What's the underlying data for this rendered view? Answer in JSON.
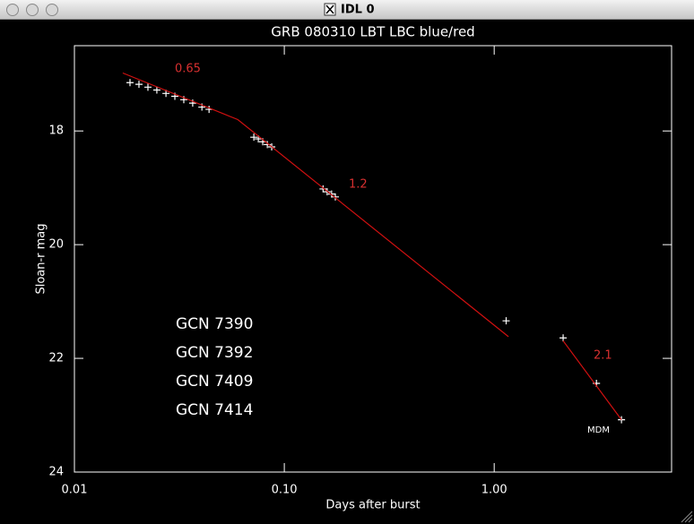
{
  "window": {
    "title": "IDL 0"
  },
  "chart_data": {
    "type": "scatter",
    "title": "GRB 080310 LBT LBC blue/red",
    "x_label": "Days after burst",
    "y_label": "Sloan-r mag",
    "xscale": "log",
    "xlim": [
      0.01,
      7
    ],
    "ylim": [
      24,
      16.5
    ],
    "xticks": [
      0.01,
      {
        "value": 0.1,
        "label": "0.10"
      },
      {
        "value": 1,
        "label": "1.00"
      }
    ],
    "yticks": [
      18,
      20,
      22,
      24
    ],
    "grid": false,
    "series": [
      {
        "type": "scatter",
        "color": "#ffffff",
        "x": [
          0.0184,
          0.0203,
          0.0224,
          0.0247,
          0.0273,
          0.0301,
          0.0332,
          0.0366,
          0.0405,
          0.0438,
          0.0716,
          0.0752,
          0.0789,
          0.083,
          0.0871,
          0.153,
          0.16,
          0.168,
          0.175,
          1.14,
          2.13,
          3.07,
          4.04
        ],
        "values": [
          17.15,
          17.18,
          17.23,
          17.28,
          17.34,
          17.39,
          17.45,
          17.51,
          17.58,
          17.62,
          18.11,
          18.14,
          18.19,
          18.24,
          18.28,
          19.02,
          19.07,
          19.11,
          19.16,
          21.34,
          21.64,
          22.44,
          23.08
        ]
      },
      {
        "type": "line",
        "color": "#d01010",
        "x": [
          0.017,
          0.06,
          1.17,
          null,
          2.13,
          4.04
        ],
        "values": [
          16.98,
          17.8,
          21.62,
          null,
          21.69,
          23.08
        ]
      }
    ],
    "annotations": [
      {
        "text": "0.65",
        "color": "#d83030"
      },
      {
        "text": "1.2",
        "color": "#d83030"
      },
      {
        "text": "2.1",
        "color": "#d83030"
      },
      {
        "text": "MDM",
        "color": "#ffffff"
      },
      {
        "text": "GCN 7390",
        "color": "#ffffff"
      },
      {
        "text": "GCN 7392",
        "color": "#ffffff"
      },
      {
        "text": "GCN 7409",
        "color": "#ffffff"
      },
      {
        "text": "GCN 7414",
        "color": "#ffffff"
      }
    ]
  }
}
